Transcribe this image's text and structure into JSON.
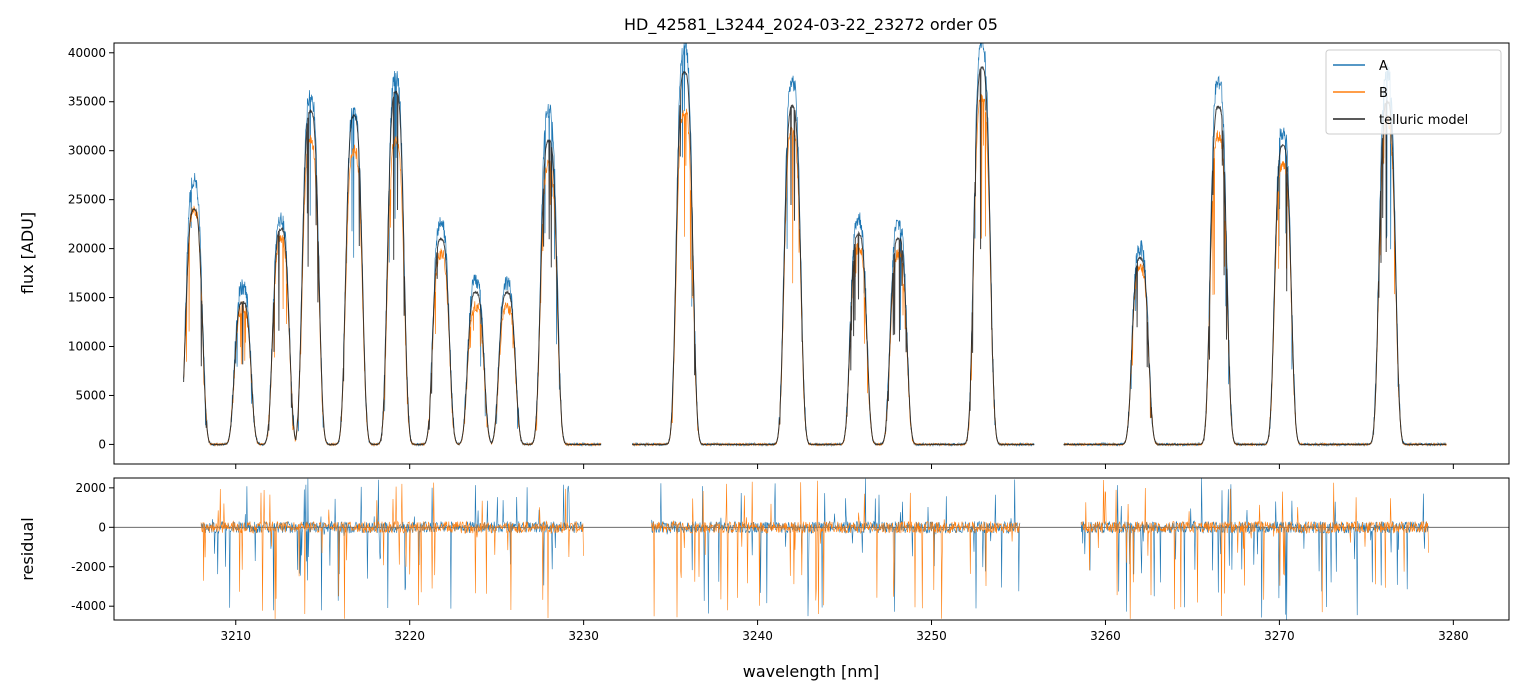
{
  "chart_data": [
    {
      "type": "line",
      "title": "HD_42581_L3244_2024-03-22_23272  order 05",
      "xlabel": "",
      "ylabel": "flux [ADU]",
      "xlim": [
        3203.0,
        3283.2
      ],
      "ylim": [
        -2000,
        41000
      ],
      "xticks": [
        3210,
        3220,
        3230,
        3240,
        3250,
        3260,
        3270,
        3280
      ],
      "yticks": [
        0,
        5000,
        10000,
        15000,
        20000,
        25000,
        30000,
        35000,
        40000
      ],
      "legend_position": "top-right",
      "series": [
        {
          "name": "A",
          "color": "#1f77b4"
        },
        {
          "name": "B",
          "color": "#ff7f0e"
        },
        {
          "name": "telluric model",
          "color": "#222222"
        }
      ],
      "segments": [
        {
          "start": 3207.0,
          "end": 3231.0
        },
        {
          "start": 3232.8,
          "end": 3255.9
        },
        {
          "start": 3257.6,
          "end": 3279.6
        }
      ],
      "continuum_peaks": [
        {
          "x": 3207.6,
          "model": 24000,
          "A": 27000,
          "B": 24000
        },
        {
          "x": 3210.4,
          "model": 14500,
          "A": 16000,
          "B": 14000
        },
        {
          "x": 3212.6,
          "model": 22000,
          "A": 23000,
          "B": 21000
        },
        {
          "x": 3214.3,
          "model": 34000,
          "A": 35500,
          "B": 31000
        },
        {
          "x": 3216.8,
          "model": 33500,
          "A": 34000,
          "B": 30000
        },
        {
          "x": 3219.2,
          "model": 36000,
          "A": 37500,
          "B": 31000
        },
        {
          "x": 3221.8,
          "model": 21000,
          "A": 22500,
          "B": 19500
        },
        {
          "x": 3223.8,
          "model": 15500,
          "A": 16500,
          "B": 14000
        },
        {
          "x": 3225.6,
          "model": 15500,
          "A": 16500,
          "B": 14000
        },
        {
          "x": 3228.0,
          "model": 31000,
          "A": 34000,
          "B": 28500
        },
        {
          "x": 3235.8,
          "model": 38000,
          "A": 40500,
          "B": 34000
        },
        {
          "x": 3242.0,
          "model": 34500,
          "A": 37000,
          "B": 32000
        },
        {
          "x": 3245.8,
          "model": 21500,
          "A": 23000,
          "B": 20000
        },
        {
          "x": 3248.1,
          "model": 21000,
          "A": 22500,
          "B": 19500
        },
        {
          "x": 3252.9,
          "model": 38500,
          "A": 40500,
          "B": 35500
        },
        {
          "x": 3262.0,
          "model": 19000,
          "A": 20000,
          "B": 18000
        },
        {
          "x": 3266.5,
          "model": 34500,
          "A": 37000,
          "B": 31500
        },
        {
          "x": 3270.2,
          "model": 30500,
          "A": 32000,
          "B": 28500
        },
        {
          "x": 3276.2,
          "model": 35000,
          "A": 38000,
          "B": 33000
        }
      ]
    },
    {
      "type": "line",
      "title": "",
      "xlabel": "wavelength [nm]",
      "ylabel": "residual",
      "xlim": [
        3203.0,
        3283.2
      ],
      "ylim": [
        -4700,
        2500
      ],
      "xticks": [
        3210,
        3220,
        3230,
        3240,
        3250,
        3260,
        3270,
        3280
      ],
      "yticks": [
        -4000,
        -2000,
        0,
        2000
      ],
      "hline": 0,
      "series": [
        {
          "name": "A",
          "color": "#1f77b4"
        },
        {
          "name": "B",
          "color": "#ff7f0e"
        }
      ],
      "segments": [
        {
          "start": 3208.0,
          "end": 3230.0
        },
        {
          "start": 3233.9,
          "end": 3255.1
        },
        {
          "start": 3258.6,
          "end": 3278.6
        }
      ],
      "typical_amplitude": 300,
      "max_spike": [
        -4700,
        2500
      ]
    }
  ]
}
